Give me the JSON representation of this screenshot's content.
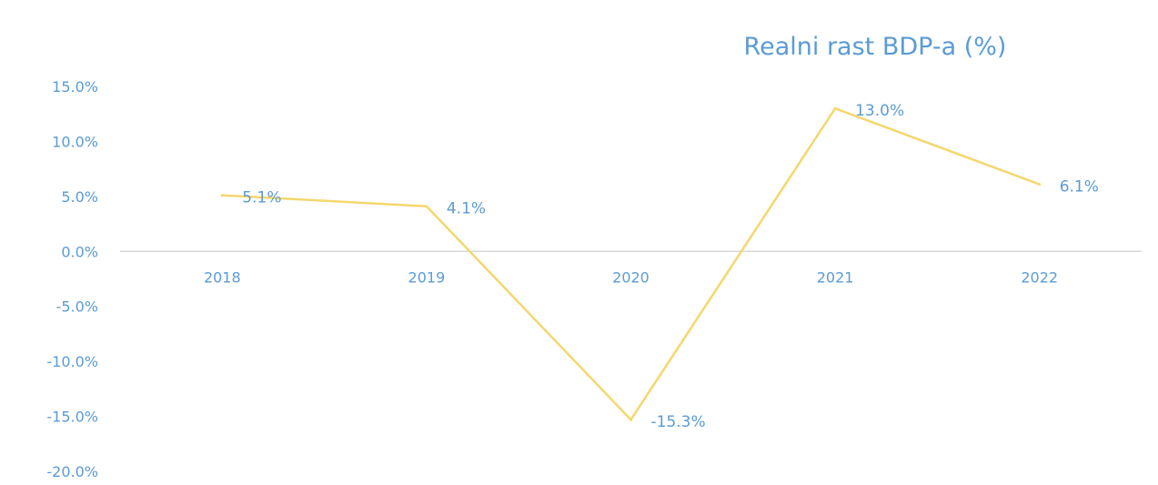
{
  "chart_data": {
    "type": "line",
    "title": "Realni rast BDP-a (%)",
    "xlabel": "",
    "ylabel": "",
    "categories": [
      "2018",
      "2019",
      "2020",
      "2021",
      "2022"
    ],
    "series": [
      {
        "values": [
          5.1,
          4.1,
          -15.3,
          13.0,
          6.1
        ],
        "data_labels": [
          "5.1%",
          "4.1%",
          "-15.3%",
          "13.0%",
          "6.1%"
        ],
        "color": "#f5d76e"
      }
    ],
    "ylim": [
      -20,
      15
    ],
    "yticks": [
      15,
      10,
      5,
      0,
      -5,
      -10,
      -15,
      -20
    ],
    "ytick_labels": [
      "15.0%",
      "10.0%",
      "5.0%",
      "0.0%",
      "-5.0%",
      "-10.0%",
      "-15.0%",
      "-20.0%"
    ],
    "grid": false,
    "legend": "none",
    "colors": {
      "text": "#5b9bd5",
      "axis": "#d9d9d9",
      "line": "#f5d76e"
    }
  }
}
